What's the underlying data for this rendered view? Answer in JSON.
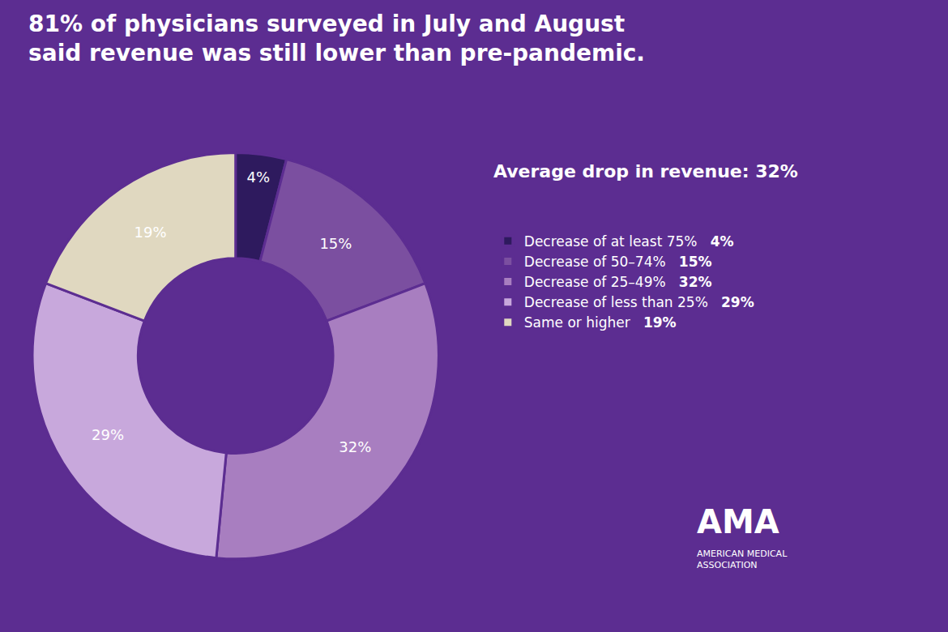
{
  "chart_data": {
    "type": "pie",
    "title": "81% of physicians surveyed in July and August\nsaid revenue was still lower than pre-pandemic.",
    "subtitle": "Average drop in revenue: 32%",
    "categories": [
      "Decrease of at least 75%",
      "Decrease of 50–74%",
      "Decrease of 25–49%",
      "Decrease of less than 25%",
      "Same or higher"
    ],
    "values": [
      4,
      15,
      32,
      29,
      19
    ],
    "value_labels": [
      "4%",
      "15%",
      "32%",
      "29%",
      "19%"
    ],
    "colors": [
      "#2e1a5e",
      "#7b4fa0",
      "#a87ec0",
      "#c8a8dc",
      "#e0d8c0"
    ],
    "data_labels": true,
    "legend": "right",
    "annotations": [
      "AMA",
      "AMERICAN MEDICAL\nASSOCIATION"
    ]
  }
}
